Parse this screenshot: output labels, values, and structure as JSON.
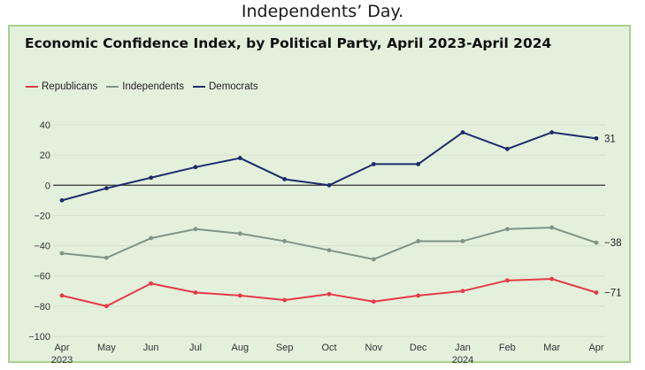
{
  "caption": "Independents’ Day.",
  "colors": {
    "panel_bg": "#e3f0dc",
    "panel_border": "#a9d18e",
    "republicans": "#e53a4a",
    "independents": "#7f9484",
    "democrats": "#1e2c6b",
    "grid": "#d4e0cc",
    "zero_line": "#333333"
  },
  "chart_data": {
    "type": "line",
    "title": "Economic Confidence Index, by Political Party, April 2023-April 2024",
    "categories": [
      "Apr",
      "May",
      "Jun",
      "Jul",
      "Aug",
      "Sep",
      "Oct",
      "Nov",
      "Dec",
      "Jan",
      "Feb",
      "Mar",
      "Apr"
    ],
    "year_labels": [
      {
        "index": 0,
        "text": "2023"
      },
      {
        "index": 9,
        "text": "2024"
      }
    ],
    "ylim": [
      -100,
      40
    ],
    "yticks": [
      40,
      20,
      0,
      -20,
      -40,
      -60,
      -80,
      -100
    ],
    "ytick_labels": [
      "40",
      "20",
      "0",
      "−20",
      "−40",
      "−60",
      "−80",
      "−100"
    ],
    "series": [
      {
        "name": "Republicans",
        "key": "republicans",
        "values": [
          -73,
          -80,
          -65,
          -71,
          -73,
          -76,
          -72,
          -77,
          -73,
          -70,
          -63,
          -62,
          -71
        ],
        "end_label": "−71"
      },
      {
        "name": "Independents",
        "key": "independents",
        "values": [
          -45,
          -48,
          -35,
          -29,
          -32,
          -37,
          -43,
          -49,
          -37,
          -37,
          -29,
          -28,
          -38
        ],
        "end_label": "−38"
      },
      {
        "name": "Democrats",
        "key": "democrats",
        "values": [
          -10,
          -2,
          5,
          12,
          18,
          4,
          0,
          14,
          14,
          35,
          24,
          35,
          31
        ],
        "end_label": "31"
      }
    ]
  }
}
